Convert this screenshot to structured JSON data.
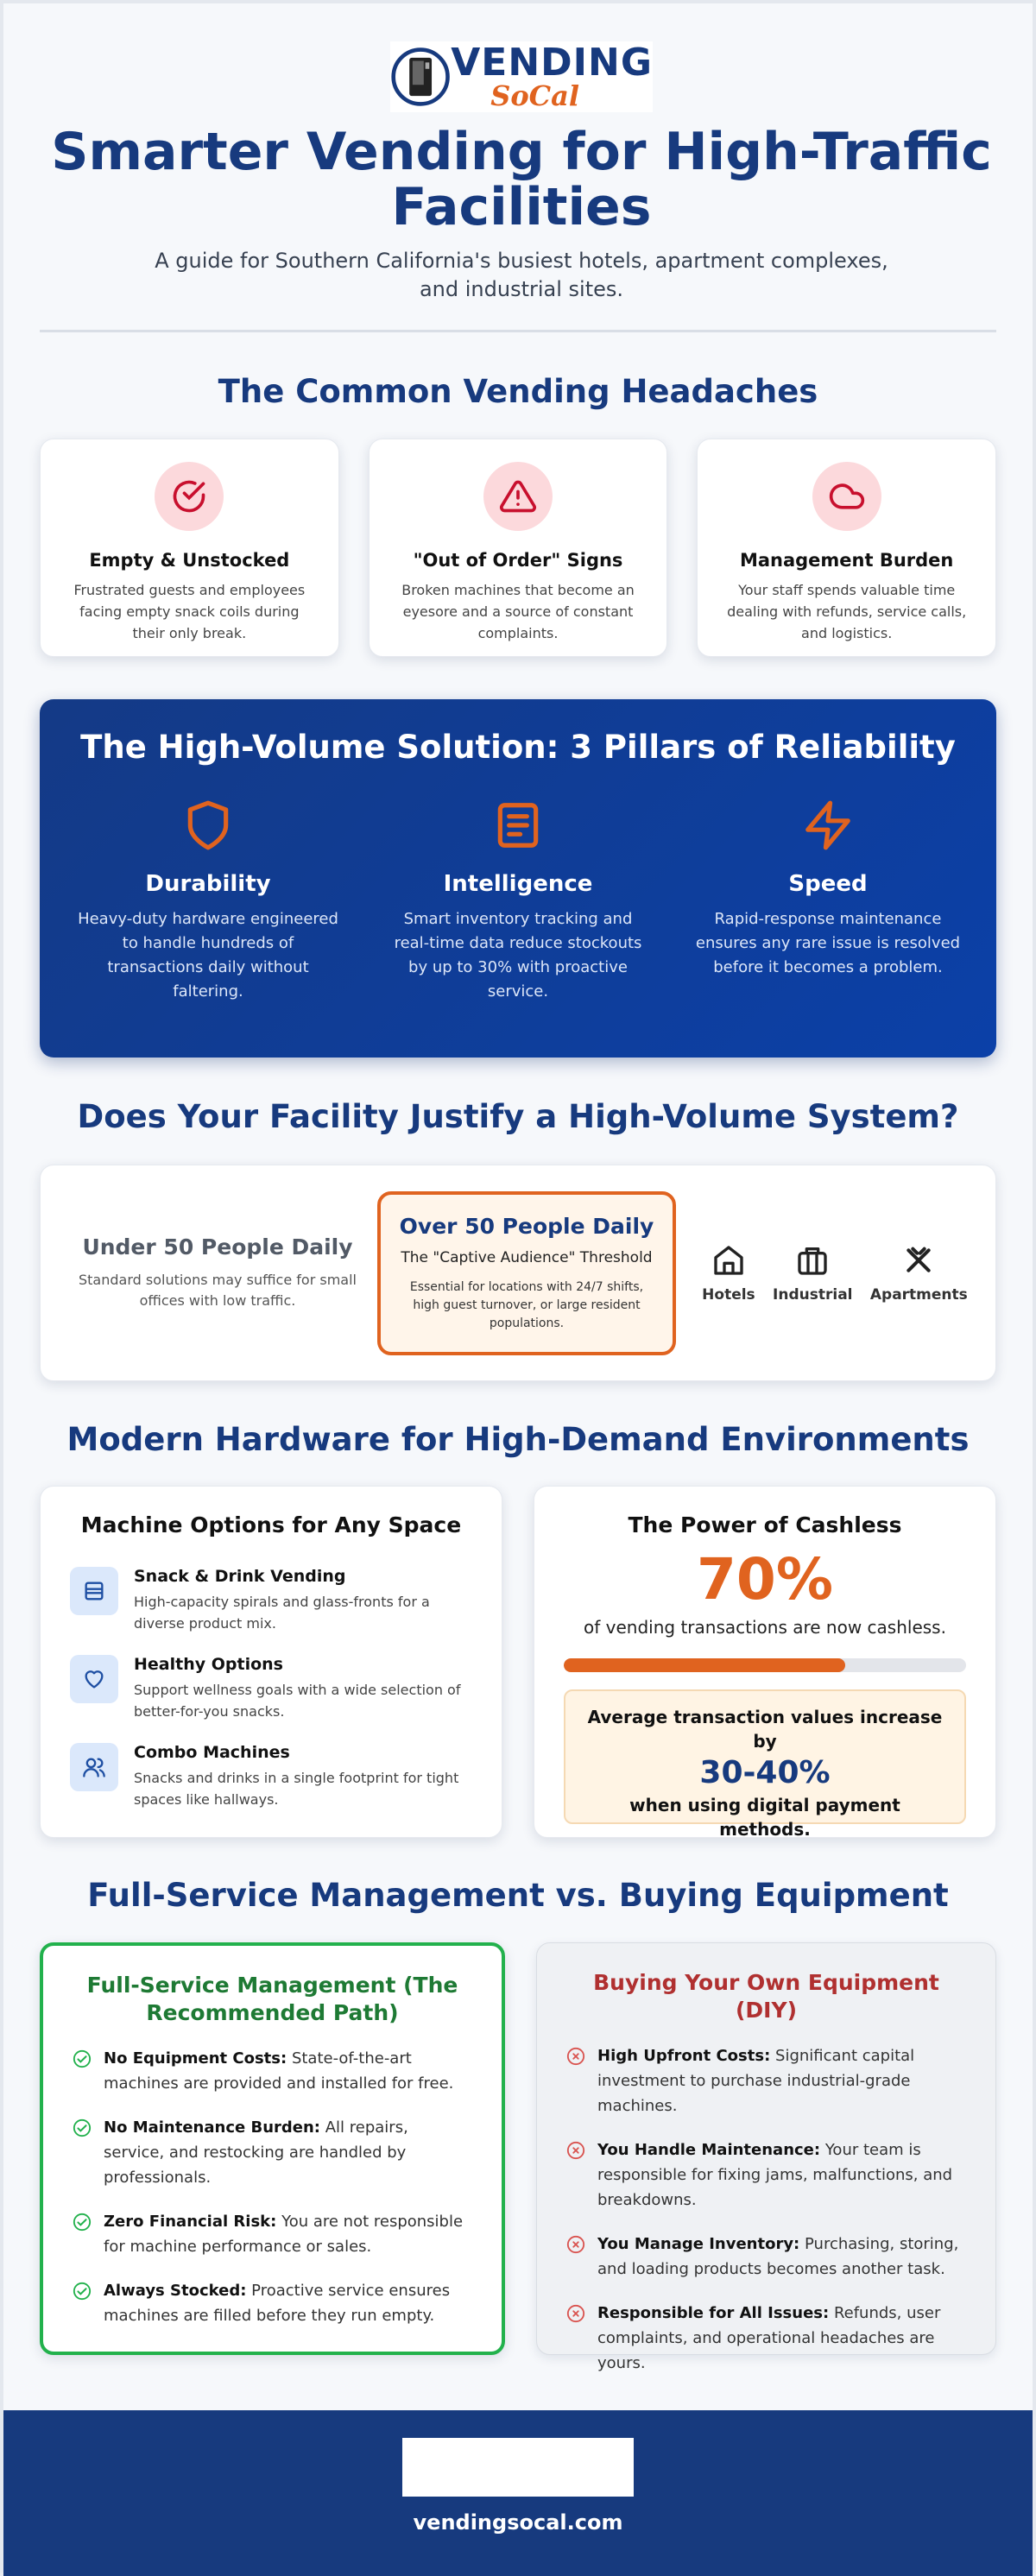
{
  "header": {
    "logo_word": "VENDING",
    "logo_script": "SoCal",
    "title": "Smarter Vending for High-Traffic Facilities",
    "subtitle": "A guide for Southern California's busiest hotels, apartment complexes, and industrial sites."
  },
  "headaches": {
    "title": "The Common Vending Headaches",
    "cards": [
      {
        "title": "Empty & Unstocked",
        "text": "Frustrated guests and employees facing empty snack coils during their only break."
      },
      {
        "title": "\"Out of Order\" Signs",
        "text": "Broken machines that become an eyesore and a source of constant complaints."
      },
      {
        "title": "Management Burden",
        "text": "Your staff spends valuable time dealing with refunds, service calls, and logistics."
      }
    ]
  },
  "solution": {
    "title": "The High-Volume Solution: 3 Pillars of Reliability",
    "pillars": [
      {
        "title": "Durability",
        "text": "Heavy-duty hardware engineered to handle hundreds of transactions daily without faltering."
      },
      {
        "title": "Intelligence",
        "text": "Smart inventory tracking and real-time data reduce stockouts by up to 30% with proactive service."
      },
      {
        "title": "Speed",
        "text": "Rapid-response maintenance ensures any rare issue is resolved before it becomes a problem."
      }
    ]
  },
  "facility": {
    "title": "Does Your Facility Justify a High-Volume System?",
    "under": {
      "title": "Under 50 People Daily",
      "text": "Standard solutions may suffice for small offices with low traffic."
    },
    "over": {
      "title": "Over 50 People Daily",
      "subtitle": "The \"Captive Audience\" Threshold",
      "text": "Essential for locations with 24/7 shifts, high guest turnover, or large resident populations."
    },
    "types": [
      "Hotels",
      "Industrial",
      "Apartments"
    ]
  },
  "hardware": {
    "title": "Modern Hardware for High-Demand Environments",
    "machines": {
      "title": "Machine Options for Any Space",
      "items": [
        {
          "title": "Snack & Drink Vending",
          "text": "High-capacity spirals and glass-fronts for a diverse product mix."
        },
        {
          "title": "Healthy Options",
          "text": "Support wellness goals with a wide selection of better-for-you snacks."
        },
        {
          "title": "Combo Machines",
          "text": "Snacks and drinks in a single footprint for tight spaces like hallways."
        }
      ]
    },
    "cashless": {
      "title": "The Power of Cashless",
      "stat": {
        "value": 70,
        "label": "70%"
      },
      "stat_text": "of vending transactions are now cashless.",
      "callout": {
        "line1": "Average transaction values increase by",
        "figure": "30-40%",
        "line2": "when using digital payment methods."
      }
    }
  },
  "comparison": {
    "title": "Full-Service Management vs. Buying Equipment",
    "full_service": {
      "title": "Full-Service Management (The Recommended Path)",
      "items": [
        {
          "label": "No Equipment Costs:",
          "text": "State-of-the-art machines are provided and installed for free."
        },
        {
          "label": "No Maintenance Burden:",
          "text": "All repairs, service, and restocking are handled by professionals."
        },
        {
          "label": "Zero Financial Risk:",
          "text": "You are not responsible for machine performance or sales."
        },
        {
          "label": "Always Stocked:",
          "text": "Proactive service ensures machines are filled before they run empty."
        }
      ]
    },
    "diy": {
      "title": "Buying Your Own Equipment (DIY)",
      "items": [
        {
          "label": "High Upfront Costs:",
          "text": "Significant capital investment to purchase industrial-grade machines."
        },
        {
          "label": "You Handle Maintenance:",
          "text": "Your team is responsible for fixing jams, malfunctions, and breakdowns."
        },
        {
          "label": "You Manage Inventory:",
          "text": "Purchasing, storing, and loading products becomes another task."
        },
        {
          "label": "Responsible for All Issues:",
          "text": "Refunds, user complaints, and operational headaches are yours."
        }
      ]
    }
  },
  "footer": {
    "url": "vendingsocal.com"
  }
}
